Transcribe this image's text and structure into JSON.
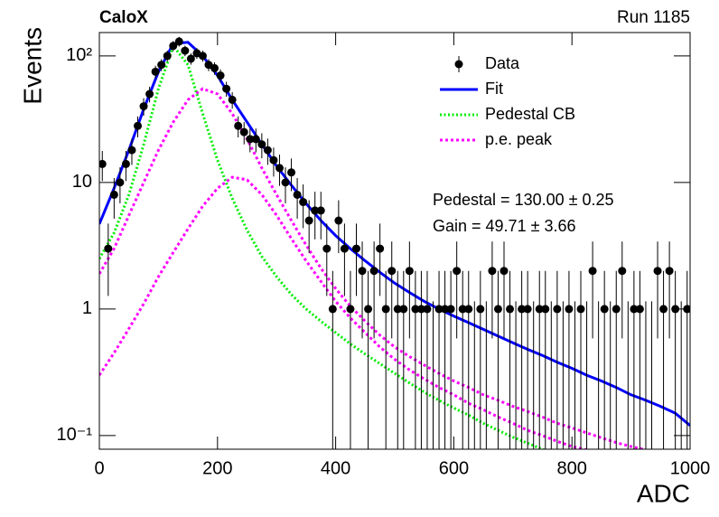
{
  "chart_data": {
    "type": "errorbar",
    "title": "CaloX",
    "subtitle": "Run 1185",
    "x_label": "ADC",
    "y_label": "Events",
    "annotations": [
      "Pedestal = 130.00 ± 0.25",
      "Gain = 49.71 ± 3.66"
    ],
    "log_y": true,
    "legend": "top-right",
    "xlim": [
      0,
      1000
    ],
    "xticks": [
      0,
      200,
      400,
      600,
      800,
      1000
    ],
    "ylim": [
      0.078,
      153
    ],
    "yticks": [
      {
        "value": 0.1,
        "label": "10⁻¹"
      },
      1,
      10,
      {
        "value": 100,
        "label": "10²"
      }
    ],
    "series": [
      {
        "name": "Data",
        "color": "#000000",
        "style": "points",
        "x": [
          5,
          15,
          25,
          35,
          45,
          55,
          65,
          75,
          85,
          95,
          105,
          115,
          125,
          135,
          145,
          155,
          165,
          175,
          185,
          195,
          205,
          215,
          225,
          235,
          245,
          255,
          265,
          275,
          285,
          295,
          305,
          315,
          325,
          335,
          345,
          355,
          365,
          375,
          385,
          395,
          405,
          415,
          425,
          435,
          445,
          455,
          465,
          475,
          485,
          495,
          505,
          515,
          525,
          535,
          545,
          555,
          565,
          575,
          585,
          595,
          605,
          615,
          625,
          635,
          645,
          655,
          665,
          675,
          685,
          695,
          705,
          715,
          725,
          735,
          745,
          755,
          765,
          775,
          785,
          795,
          805,
          815,
          825,
          835,
          845,
          855,
          865,
          875,
          885,
          895,
          905,
          915,
          925,
          935,
          945,
          955,
          965,
          975,
          985,
          995
        ],
        "values": [
          14,
          3,
          8,
          10,
          14,
          18,
          28,
          40,
          50,
          75,
          85,
          100,
          120,
          130,
          110,
          95,
          105,
          100,
          85,
          80,
          70,
          55,
          45,
          28,
          25,
          22,
          22,
          20,
          18,
          15,
          13,
          10,
          12,
          8,
          7,
          5,
          6,
          6,
          3,
          1,
          5,
          3,
          1,
          3,
          2,
          1,
          2,
          3,
          1,
          2,
          1,
          1,
          2,
          1,
          1,
          1,
          0,
          1,
          1,
          1,
          2,
          1,
          1,
          0,
          1,
          0,
          2,
          1,
          2,
          1,
          0,
          1,
          1,
          0,
          1,
          1,
          0,
          1,
          0,
          1,
          0,
          1,
          0,
          2,
          0,
          1,
          0,
          1,
          2,
          0,
          1,
          1,
          0,
          0,
          2,
          1,
          2,
          1,
          0,
          1
        ]
      },
      {
        "name": "Fit",
        "color": "#0000ff",
        "style": "solid",
        "x": [
          0,
          25,
          50,
          75,
          100,
          125,
          150,
          175,
          200,
          225,
          250,
          275,
          300,
          325,
          350,
          375,
          400,
          425,
          450,
          475,
          500,
          525,
          550,
          575,
          600,
          625,
          650,
          675,
          700,
          725,
          750,
          775,
          800,
          825,
          850,
          875,
          900,
          925,
          950,
          975,
          1000
        ],
        "values": [
          4.7,
          9,
          18,
          38,
          75,
          125,
          128,
          100,
          70,
          45,
          30,
          20,
          13.5,
          9.5,
          6.8,
          5,
          3.8,
          3.0,
          2.4,
          1.95,
          1.6,
          1.35,
          1.15,
          1.0,
          0.88,
          0.78,
          0.69,
          0.61,
          0.54,
          0.48,
          0.43,
          0.38,
          0.34,
          0.3,
          0.27,
          0.24,
          0.21,
          0.19,
          0.17,
          0.15,
          0.12
        ]
      },
      {
        "name": "Pedestal CB",
        "color": "#00ee00",
        "style": "dotted",
        "x": [
          0,
          25,
          50,
          75,
          100,
          125,
          150,
          175,
          200,
          225,
          250,
          275,
          300,
          325,
          350,
          375,
          400,
          425,
          450,
          475,
          500,
          525,
          550,
          575,
          600,
          625,
          650,
          675,
          700,
          725,
          750,
          775
        ],
        "values": [
          2.5,
          4,
          8,
          20,
          55,
          120,
          85,
          35,
          15,
          7.5,
          4.2,
          2.6,
          1.8,
          1.3,
          1.0,
          0.8,
          0.65,
          0.53,
          0.44,
          0.37,
          0.31,
          0.26,
          0.22,
          0.19,
          0.165,
          0.145,
          0.125,
          0.11,
          0.097,
          0.087,
          0.078,
          0.07
        ]
      },
      {
        "name": "p.e. peak",
        "color": "#ff00ff",
        "style": "dashed",
        "x": [
          0,
          25,
          50,
          75,
          100,
          125,
          150,
          175,
          200,
          225,
          250,
          275,
          300,
          325,
          350,
          375,
          400,
          425,
          450,
          475,
          500,
          525,
          550,
          575,
          600,
          625,
          650,
          675,
          700,
          725,
          750,
          775,
          800,
          825,
          850,
          875,
          900,
          925
        ],
        "values": [
          1.9,
          3,
          5.5,
          10,
          18,
          30,
          45,
          55,
          50,
          35,
          22,
          13,
          8,
          5,
          3.2,
          2.1,
          1.45,
          1.05,
          0.8,
          0.62,
          0.5,
          0.42,
          0.36,
          0.31,
          0.27,
          0.24,
          0.21,
          0.19,
          0.17,
          0.155,
          0.14,
          0.125,
          0.115,
          0.105,
          0.096,
          0.088,
          0.082,
          0.077
        ]
      },
      {
        "name": null,
        "color": "#ff00ff",
        "style": "dashed",
        "x": [
          0,
          25,
          50,
          75,
          100,
          125,
          150,
          175,
          200,
          225,
          250,
          275,
          300,
          325,
          350,
          375,
          400,
          425,
          450,
          475,
          500,
          525,
          550,
          575,
          600,
          625,
          650,
          675,
          700,
          725,
          750,
          775,
          800,
          825
        ],
        "values": [
          0.3,
          0.45,
          0.7,
          1.1,
          1.8,
          2.8,
          4.3,
          6.5,
          9,
          11,
          10.5,
          8,
          5.5,
          3.6,
          2.4,
          1.65,
          1.15,
          0.85,
          0.65,
          0.5,
          0.4,
          0.33,
          0.28,
          0.24,
          0.21,
          0.18,
          0.16,
          0.14,
          0.125,
          0.11,
          0.1,
          0.09,
          0.082,
          0.077
        ]
      }
    ]
  }
}
